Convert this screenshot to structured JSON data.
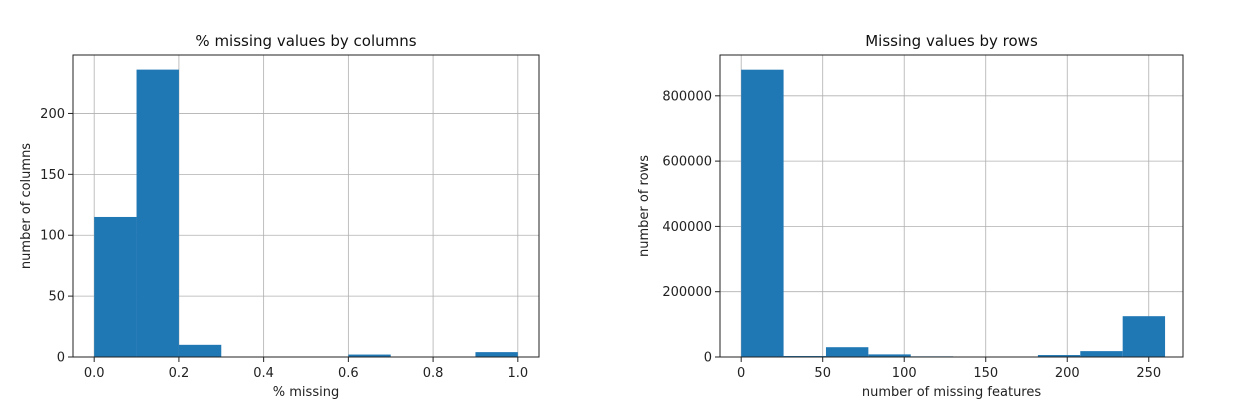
{
  "chart_data": [
    {
      "type": "bar",
      "title": "% missing values by columns",
      "xlabel": "% missing",
      "ylabel": "number of columns",
      "xlim": [
        -0.05,
        1.05
      ],
      "ylim": [
        0,
        248
      ],
      "xticks": [
        0.0,
        0.2,
        0.4,
        0.6,
        0.8,
        1.0
      ],
      "xtick_labels": [
        "0.0",
        "0.2",
        "0.4",
        "0.6",
        "0.8",
        "1.0"
      ],
      "yticks": [
        0,
        50,
        100,
        150,
        200
      ],
      "ytick_labels": [
        "0",
        "50",
        "100",
        "150",
        "200"
      ],
      "grid": true,
      "color": "#1f77b4",
      "bins": [
        {
          "x0": 0.0,
          "x1": 0.1,
          "value": 115
        },
        {
          "x0": 0.1,
          "x1": 0.2,
          "value": 236
        },
        {
          "x0": 0.2,
          "x1": 0.3,
          "value": 10
        },
        {
          "x0": 0.3,
          "x1": 0.4,
          "value": 0
        },
        {
          "x0": 0.4,
          "x1": 0.5,
          "value": 0
        },
        {
          "x0": 0.5,
          "x1": 0.6,
          "value": 0
        },
        {
          "x0": 0.6,
          "x1": 0.7,
          "value": 2
        },
        {
          "x0": 0.7,
          "x1": 0.8,
          "value": 0
        },
        {
          "x0": 0.8,
          "x1": 0.9,
          "value": 0
        },
        {
          "x0": 0.9,
          "x1": 1.0,
          "value": 4
        }
      ]
    },
    {
      "type": "bar",
      "title": "Missing values by rows",
      "xlabel": "number of missing features",
      "ylabel": "number of rows",
      "xlim": [
        -13,
        271
      ],
      "ylim": [
        0,
        925000
      ],
      "xticks": [
        0,
        50,
        100,
        150,
        200,
        250
      ],
      "xtick_labels": [
        "0",
        "50",
        "100",
        "150",
        "200",
        "250"
      ],
      "yticks": [
        0,
        200000,
        400000,
        600000,
        800000
      ],
      "ytick_labels": [
        "0",
        "200000",
        "400000",
        "600000",
        "800000"
      ],
      "grid": true,
      "color": "#1f77b4",
      "bins": [
        {
          "x0": 0,
          "x1": 26,
          "value": 880000
        },
        {
          "x0": 26,
          "x1": 52,
          "value": 3000
        },
        {
          "x0": 52,
          "x1": 78,
          "value": 30000
        },
        {
          "x0": 78,
          "x1": 104,
          "value": 8000
        },
        {
          "x0": 104,
          "x1": 130,
          "value": 2000
        },
        {
          "x0": 130,
          "x1": 156,
          "value": 1000
        },
        {
          "x0": 156,
          "x1": 182,
          "value": 1000
        },
        {
          "x0": 182,
          "x1": 208,
          "value": 6000
        },
        {
          "x0": 208,
          "x1": 234,
          "value": 18000
        },
        {
          "x0": 234,
          "x1": 260,
          "value": 125000
        }
      ]
    }
  ]
}
